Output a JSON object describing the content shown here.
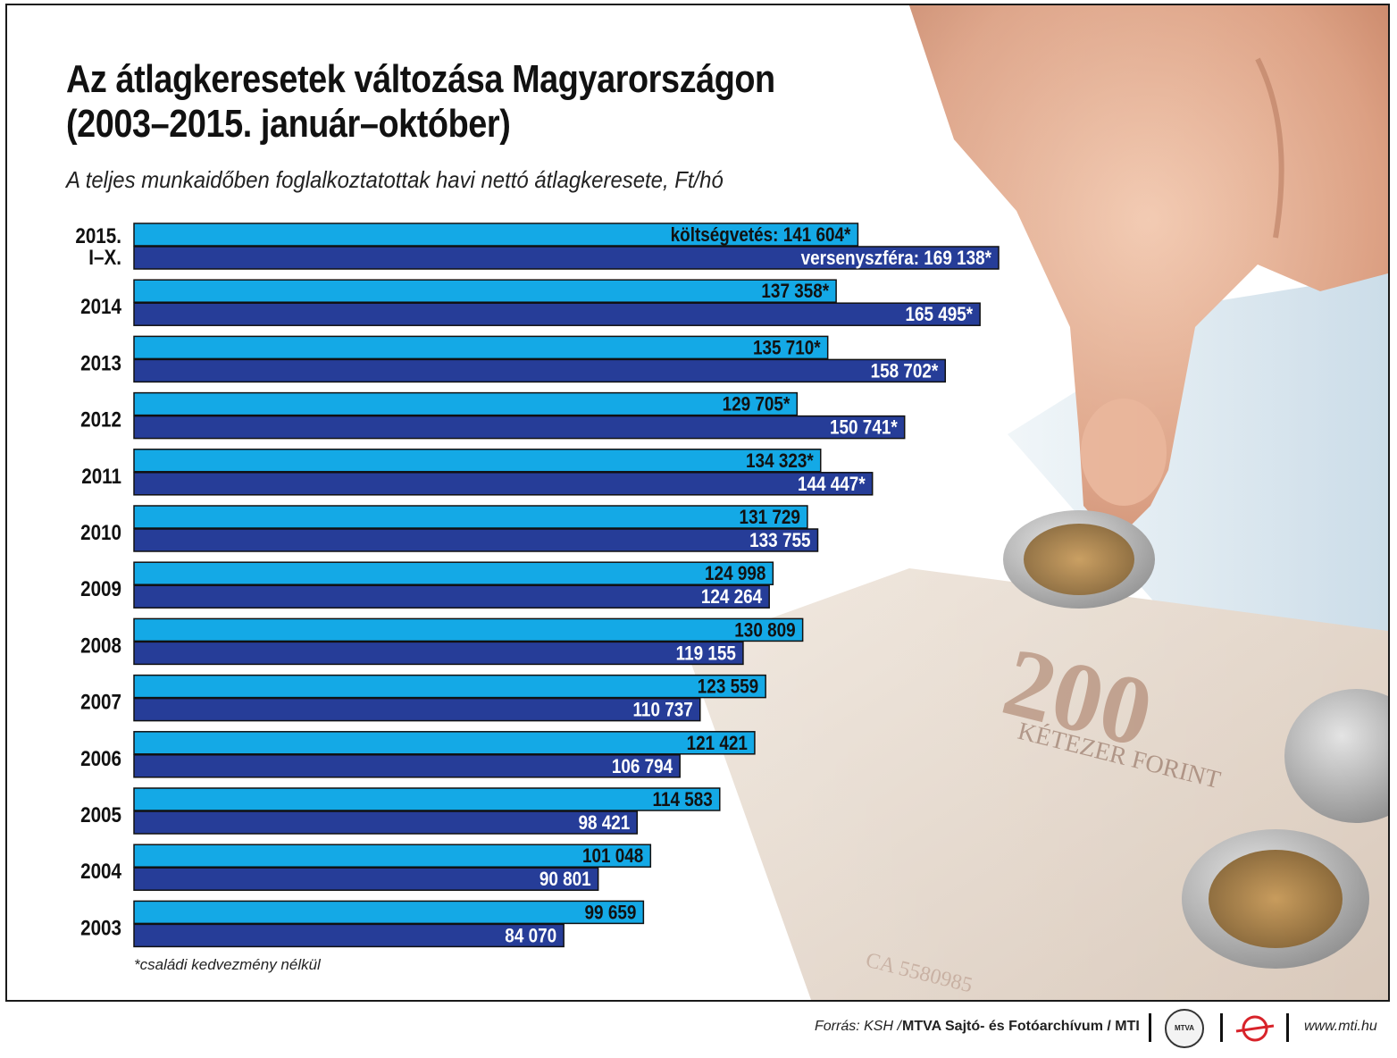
{
  "title": "Az átlagkeresetek változása Magyarországon",
  "title_line2": "(2003–2015. január–október)",
  "subtitle": "A teljes munkaidőben foglalkoztatottak havi nettó átlagkeresete, Ft/hó",
  "footnote": "*családi kedvezmény nélkül",
  "footer": {
    "source_prefix": "Forrás: KSH /",
    "source_org": "MTVA Sajtó- és Fotóarchívum / MTI",
    "logo_text": "MTVA",
    "website": "www.mti.hu"
  },
  "colors": {
    "public": "#14a9e6",
    "competitive": "#263d98",
    "border": "#111111"
  },
  "chart_data": {
    "type": "bar",
    "orientation": "horizontal",
    "categories": [
      "2015. I–X.",
      "2014",
      "2013",
      "2012",
      "2011",
      "2010",
      "2009",
      "2008",
      "2007",
      "2006",
      "2005",
      "2004",
      "2003"
    ],
    "series": [
      {
        "name": "költségvetés",
        "values": [
          141604,
          137358,
          135710,
          129705,
          134323,
          131729,
          124998,
          130809,
          123559,
          121421,
          114583,
          101048,
          99659
        ],
        "labels": [
          "költségvetés: 141 604*",
          "137 358*",
          "135 710*",
          "129 705*",
          "134 323*",
          "131 729",
          "124 998",
          "130 809",
          "123 559",
          "121 421",
          "114 583",
          "101 048",
          "99 659"
        ]
      },
      {
        "name": "versenyszféra",
        "values": [
          169138,
          165495,
          158702,
          150741,
          144447,
          133755,
          124264,
          119155,
          110737,
          106794,
          98421,
          90801,
          84070
        ],
        "labels": [
          "versenyszféra: 169 138*",
          "165 495*",
          "158 702*",
          "150 741*",
          "144 447*",
          "133 755",
          "124 264",
          "119 155",
          "110 737",
          "106 794",
          "98 421",
          "90 801",
          "84 070"
        ]
      }
    ],
    "xlim": [
      0,
      169138
    ],
    "grid": false,
    "legend": "none"
  }
}
